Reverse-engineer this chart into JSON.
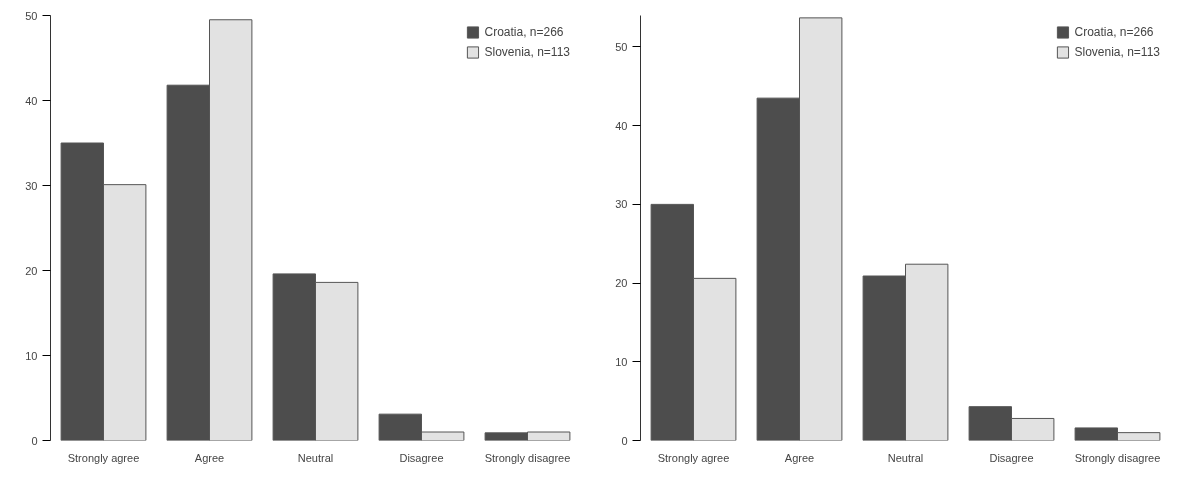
{
  "chart_data": [
    {
      "type": "bar",
      "categories": [
        "Strongly agree",
        "Agree",
        "Neutral",
        "Disagree",
        "Strongly disagree"
      ],
      "ylim": [
        0,
        50
      ],
      "yticks": [
        0,
        10,
        20,
        30,
        40,
        50
      ],
      "grid": false,
      "legend": "top right",
      "series": [
        {
          "name": "Croatia, n=266",
          "color": "#4d4d4d",
          "values": [
            35.0,
            41.8,
            19.6,
            3.1,
            0.9
          ]
        },
        {
          "name": "Slovenia, n=113",
          "color": "#e2e2e2",
          "values": [
            30.1,
            49.5,
            18.6,
            1.0,
            1.0
          ]
        }
      ]
    },
    {
      "type": "bar",
      "categories": [
        "Strongly agree",
        "Agree",
        "Neutral",
        "Disagree",
        "Strongly disagree"
      ],
      "ylim": [
        0,
        54
      ],
      "yticks": [
        0,
        10,
        20,
        30,
        40,
        50
      ],
      "grid": false,
      "legend": "top right",
      "series": [
        {
          "name": "Croatia, n=266",
          "color": "#4d4d4d",
          "values": [
            30.0,
            43.5,
            20.9,
            4.3,
            1.6
          ]
        },
        {
          "name": "Slovenia, n=113",
          "color": "#e2e2e2",
          "values": [
            20.6,
            53.7,
            22.4,
            2.8,
            1.0
          ]
        }
      ]
    }
  ]
}
